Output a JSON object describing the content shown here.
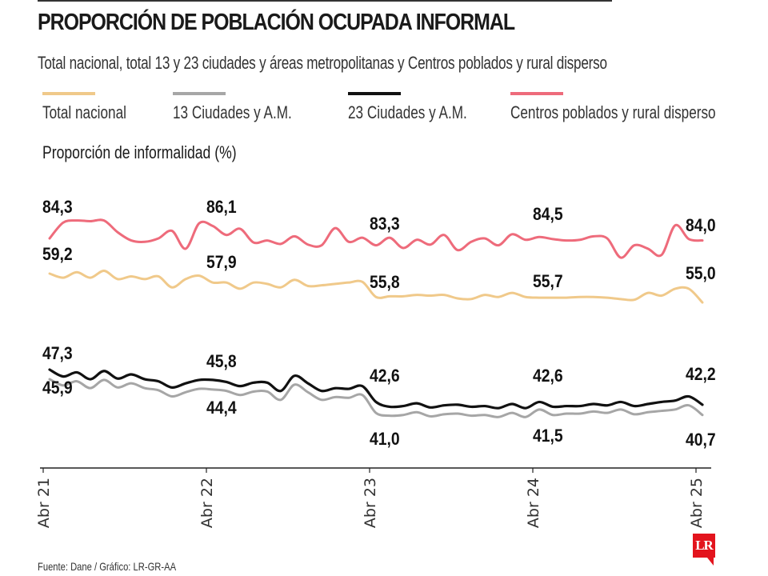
{
  "title": "PROPORCIÓN DE POBLACIÓN OCUPADA INFORMAL",
  "subtitle": "Total nacional, total 13 y 23 ciudades y áreas metropolitanas y Centros poblados y rural disperso",
  "source": "Fuente: Dane / Gráfico: LR-GR-AA",
  "logo": "LR",
  "colors": {
    "total_nacional": "#f0c98a",
    "ciudades_13": "#a6a6a6",
    "ciudades_23": "#111111",
    "rural": "#ee6b7b",
    "logo": "#e3141d"
  },
  "legend": [
    {
      "label": "Total nacional",
      "color": "#f0c98a"
    },
    {
      "label": "13 Ciudades y A.M.",
      "color": "#a6a6a6"
    },
    {
      "label": "23 Ciudades y A.M.",
      "color": "#111111"
    },
    {
      "label": "Centros poblados y rural disperso",
      "color": "#ee6b7b"
    }
  ],
  "chart_data": {
    "type": "line",
    "title": "PROPORCIÓN DE POBLACIÓN OCUPADA INFORMAL",
    "ylabel": "Proporción de informalidad (%)",
    "xlabel": "",
    "x_ticks": [
      "Abr 21",
      "Abr 22",
      "Abr 23",
      "Abr 24",
      "Abr 25"
    ],
    "x_tick_month_index": [
      0,
      12,
      24,
      36,
      48
    ],
    "grid": false,
    "legend_position": "top",
    "series": [
      {
        "name": "Centros poblados y rural disperso",
        "key": "rural",
        "values": [
          84.3,
          86.6,
          86.9,
          86.8,
          86.9,
          85.2,
          84.0,
          83.8,
          84.3,
          85.4,
          82.8,
          86.5,
          86.1,
          84.8,
          85.7,
          83.7,
          84.0,
          83.5,
          84.6,
          83.4,
          83.3,
          85.8,
          83.8,
          84.4,
          83.3,
          84.4,
          82.9,
          84.1,
          83.4,
          84.8,
          82.6,
          83.8,
          84.3,
          83.3,
          84.9,
          84.1,
          84.5,
          84.2,
          84.0,
          84.1,
          84.6,
          84.3,
          81.5,
          83.3,
          82.8,
          81.9,
          86.2,
          84.2,
          84.0
        ],
        "labels": [
          {
            "index": 0,
            "text": "84,3"
          },
          {
            "index": 12,
            "text": "86,1"
          },
          {
            "index": 24,
            "text": "83,3"
          },
          {
            "index": 36,
            "text": "84,5"
          },
          {
            "index": 48,
            "text": "84,0"
          }
        ]
      },
      {
        "name": "Total nacional",
        "key": "total_nacional",
        "values": [
          59.2,
          58.6,
          59.4,
          58.6,
          59.6,
          58.4,
          58.8,
          58.4,
          58.8,
          57.2,
          58.4,
          58.9,
          57.9,
          57.9,
          57.0,
          57.9,
          57.7,
          57.2,
          58.3,
          57.4,
          57.5,
          57.7,
          57.9,
          58.0,
          55.8,
          55.9,
          55.9,
          56.1,
          56.0,
          56.1,
          55.6,
          55.5,
          56.1,
          55.8,
          56.4,
          55.8,
          55.7,
          55.7,
          55.7,
          55.8,
          55.8,
          55.7,
          55.5,
          55.4,
          56.4,
          56.0,
          57.0,
          57.0,
          55.0
        ],
        "labels": [
          {
            "index": 0,
            "text": "59,2"
          },
          {
            "index": 12,
            "text": "57,9"
          },
          {
            "index": 24,
            "text": "55,8"
          },
          {
            "index": 36,
            "text": "55,7"
          },
          {
            "index": 48,
            "text": "55,0"
          }
        ]
      },
      {
        "name": "23 Ciudades y A.M.",
        "key": "ciudades_23",
        "values": [
          47.3,
          46.3,
          46.9,
          45.9,
          47.1,
          46.0,
          46.6,
          45.9,
          45.6,
          44.7,
          45.3,
          45.8,
          45.8,
          45.5,
          44.9,
          45.4,
          45.4,
          44.2,
          46.4,
          45.3,
          44.2,
          44.6,
          44.5,
          44.9,
          42.6,
          41.9,
          42.0,
          42.4,
          41.8,
          42.1,
          42.2,
          41.9,
          42.0,
          41.7,
          42.3,
          41.7,
          42.6,
          41.9,
          42.0,
          42.0,
          42.3,
          42.1,
          42.6,
          42.0,
          42.3,
          42.6,
          42.8,
          43.4,
          42.2
        ],
        "labels": [
          {
            "index": 0,
            "text": "47,3"
          },
          {
            "index": 12,
            "text": "45,8"
          },
          {
            "index": 24,
            "text": "42,6"
          },
          {
            "index": 36,
            "text": "42,6"
          },
          {
            "index": 48,
            "text": "42,2"
          }
        ]
      },
      {
        "name": "13 Ciudades y A.M.",
        "key": "ciudades_13",
        "values": [
          45.9,
          45.0,
          45.6,
          44.6,
          45.8,
          44.7,
          45.3,
          44.6,
          44.3,
          43.4,
          44.0,
          44.5,
          44.4,
          44.2,
          43.6,
          44.1,
          44.1,
          42.9,
          45.1,
          44.0,
          42.9,
          43.3,
          43.2,
          43.6,
          41.0,
          40.6,
          40.7,
          41.1,
          40.5,
          40.8,
          40.9,
          40.6,
          40.7,
          40.4,
          41.0,
          40.4,
          41.5,
          40.7,
          40.9,
          40.9,
          41.2,
          41.0,
          41.5,
          40.8,
          41.1,
          41.3,
          41.5,
          42.1,
          40.7
        ],
        "labels": [
          {
            "index": 0,
            "text": "45,9"
          },
          {
            "index": 12,
            "text": "44,4"
          },
          {
            "index": 24,
            "text": "41,0"
          },
          {
            "index": 36,
            "text": "41,5"
          },
          {
            "index": 48,
            "text": "40,7"
          }
        ]
      }
    ]
  }
}
